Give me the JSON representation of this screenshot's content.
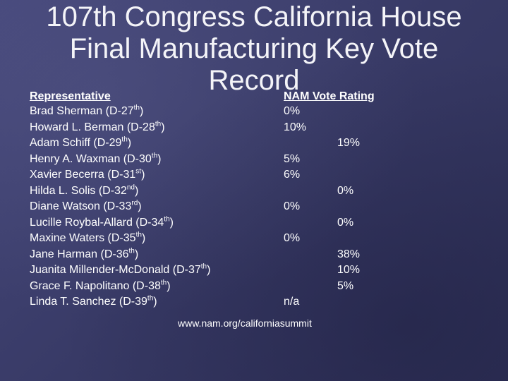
{
  "slide": {
    "title_lines": [
      "107th Congress California House",
      "Final Manufacturing Key Vote",
      "Record"
    ],
    "column_headers": {
      "representative": "Representative",
      "rating": "NAM Vote Rating"
    },
    "rows": [
      {
        "name": "Brad Sherman (D-27",
        "sup": "th",
        "close": ")",
        "rating_left": "0%",
        "rating_right": ""
      },
      {
        "name": "Howard L. Berman (D-28",
        "sup": "th",
        "close": ")",
        "rating_left": "10%",
        "rating_right": ""
      },
      {
        "name": "Adam Schiff (D-29",
        "sup": "th",
        "close": ")",
        "rating_left": "",
        "rating_right": "19%"
      },
      {
        "name": "Henry A. Waxman (D-30",
        "sup": "th",
        "close": ")",
        "rating_left": "5%",
        "rating_right": ""
      },
      {
        "name": "Xavier Becerra (D-31",
        "sup": "st",
        "close": ")",
        "rating_left": "6%",
        "rating_right": ""
      },
      {
        "name": "Hilda L. Solis (D-32",
        "sup": "nd",
        "close": ")",
        "rating_left": "",
        "rating_right": "0%"
      },
      {
        "name": "Diane Watson (D-33",
        "sup": "rd",
        "close": ")",
        "rating_left": "0%",
        "rating_right": ""
      },
      {
        "name": "Lucille Roybal-Allard (D-34",
        "sup": "th",
        "close": ")",
        "rating_left": "",
        "rating_right": "0%"
      },
      {
        "name": "Maxine Waters (D-35",
        "sup": "th",
        "close": ")",
        "rating_left": "0%",
        "rating_right": ""
      },
      {
        "name": "Jane Harman (D-36",
        "sup": "th",
        "close": ")",
        "rating_left": "",
        "rating_right": "38%"
      },
      {
        "name": "Juanita Millender-McDonald (D-37",
        "sup": "th",
        "close": ")",
        "rating_left": "",
        "rating_right": "10%"
      },
      {
        "name": "Grace F. Napolitano (D-38",
        "sup": "th",
        "close": ")",
        "rating_left": "",
        "rating_right": "5%"
      },
      {
        "name": "Linda T. Sanchez (D-39",
        "sup": "th",
        "close": ")",
        "rating_left": "n/a",
        "rating_right": ""
      }
    ],
    "footer_url": "www.nam.org/californiasummit"
  },
  "colors": {
    "background": "#3d3f6d",
    "text": "#ffffff"
  }
}
